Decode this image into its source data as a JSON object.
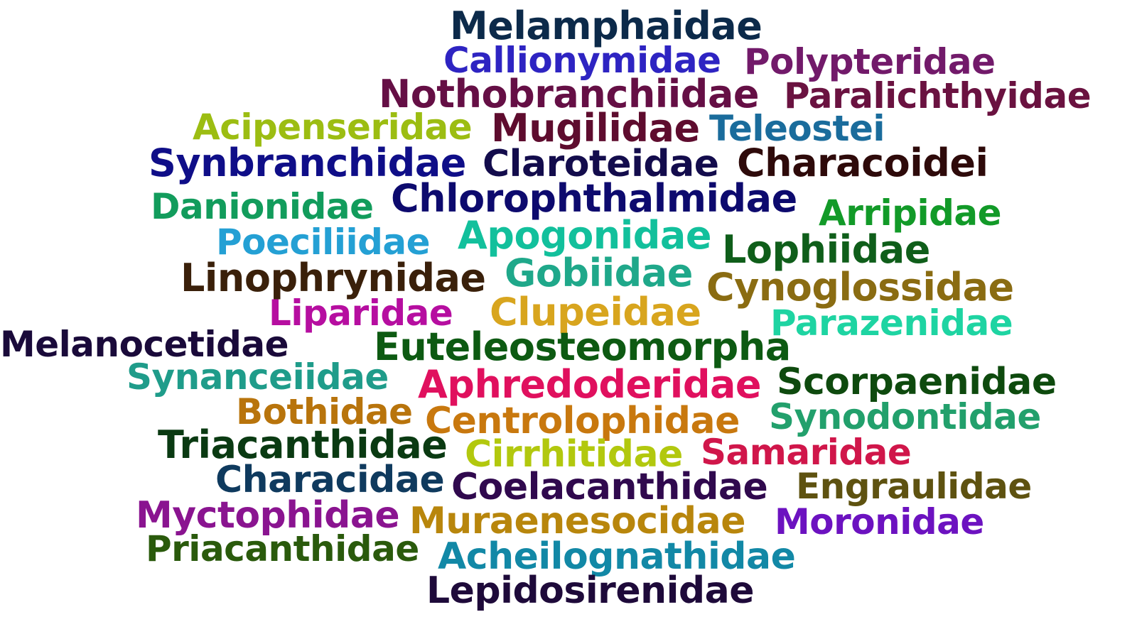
{
  "words": [
    {
      "text": "Melamphaidae",
      "color": "#0c2a4a"
    },
    {
      "text": "Callionymidae",
      "color": "#2e24c2"
    },
    {
      "text": "Polypteridae",
      "color": "#721a6a"
    },
    {
      "text": "Nothobranchiidae",
      "color": "#650f45"
    },
    {
      "text": "Paralichthyidae",
      "color": "#6a1240"
    },
    {
      "text": "Acipenseridae",
      "color": "#9cbd12"
    },
    {
      "text": "Mugilidae",
      "color": "#5e0c2e"
    },
    {
      "text": "Teleostei",
      "color": "#1a6c9c"
    },
    {
      "text": "Synbranchidae",
      "color": "#0f0e88"
    },
    {
      "text": "Claroteidae",
      "color": "#130c4c"
    },
    {
      "text": "Characoidei",
      "color": "#2e0a0a"
    },
    {
      "text": "Danionidae",
      "color": "#129c5c"
    },
    {
      "text": "Chlorophthalmidae",
      "color": "#0d0a6e"
    },
    {
      "text": "Arripidae",
      "color": "#129a28"
    },
    {
      "text": "Poeciliidae",
      "color": "#24a0d4"
    },
    {
      "text": "Apogonidae",
      "color": "#12c09c"
    },
    {
      "text": "Lophiidae",
      "color": "#0f5e1a"
    },
    {
      "text": "Linophrynidae",
      "color": "#3a200a"
    },
    {
      "text": "Gobiidae",
      "color": "#1fa88a"
    },
    {
      "text": "Cynoglossidae",
      "color": "#8a6c12"
    },
    {
      "text": "Liparidae",
      "color": "#b60ea0"
    },
    {
      "text": "Clupeidae",
      "color": "#d8a51e"
    },
    {
      "text": "Parazenidae",
      "color": "#1ed4a2"
    },
    {
      "text": "Melanocetidae",
      "color": "#1a0a3a"
    },
    {
      "text": "Euteleosteomorpha",
      "color": "#0d5a12"
    },
    {
      "text": "Synanceiidae",
      "color": "#1f9c8a"
    },
    {
      "text": "Aphredoderidae",
      "color": "#e0105e"
    },
    {
      "text": "Scorpaenidae",
      "color": "#0e4a0e"
    },
    {
      "text": "Bothidae",
      "color": "#b8740c"
    },
    {
      "text": "Centrolophidae",
      "color": "#c8780e"
    },
    {
      "text": "Synodontidae",
      "color": "#22a06c"
    },
    {
      "text": "Triacanthidae",
      "color": "#0a3a12"
    },
    {
      "text": "Cirrhitidae",
      "color": "#b2c80e"
    },
    {
      "text": "Samaridae",
      "color": "#d0164a"
    },
    {
      "text": "Characidae",
      "color": "#0f3a5e"
    },
    {
      "text": "Coelacanthidae",
      "color": "#30094e"
    },
    {
      "text": "Engraulidae",
      "color": "#5e5210"
    },
    {
      "text": "Myctophidae",
      "color": "#8a1490"
    },
    {
      "text": "Muraenesocidae",
      "color": "#b8860c"
    },
    {
      "text": "Moronidae",
      "color": "#6c12c0"
    },
    {
      "text": "Priacanthidae",
      "color": "#2a5a0c"
    },
    {
      "text": "Acheilognathidae",
      "color": "#1288a6"
    },
    {
      "text": "Lepidosirenidae",
      "color": "#1e0a3a"
    }
  ]
}
